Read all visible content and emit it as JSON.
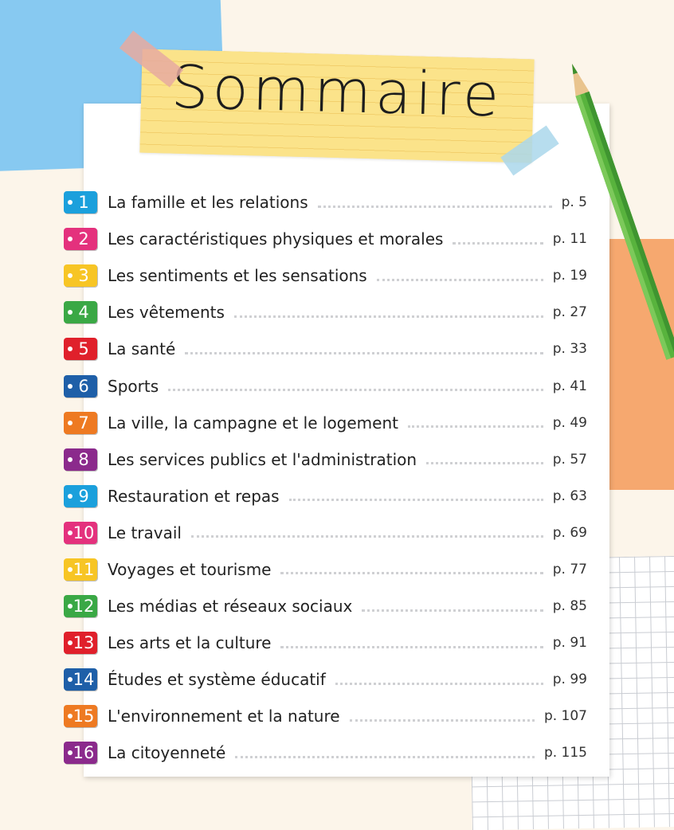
{
  "header": {
    "title": "Sommaire"
  },
  "entries": [
    {
      "number": "1",
      "label": "La famille et les relations",
      "page": "p. 5"
    },
    {
      "number": "2",
      "label": "Les caractéristiques physiques et morales",
      "page": "p. 11"
    },
    {
      "number": "3",
      "label": "Les sentiments et les sensations",
      "page": "p. 19"
    },
    {
      "number": "4",
      "label": "Les vêtements",
      "page": "p. 27"
    },
    {
      "number": "5",
      "label": "La santé",
      "page": "p. 33"
    },
    {
      "number": "6",
      "label": "Sports",
      "page": "p. 41"
    },
    {
      "number": "7",
      "label": "La ville, la campagne et le logement",
      "page": "p. 49"
    },
    {
      "number": "8",
      "label": "Les services publics et l'administration",
      "page": "p. 57"
    },
    {
      "number": "9",
      "label": "Restauration et repas",
      "page": "p. 63"
    },
    {
      "number": "10",
      "label": "Le travail",
      "page": "p. 69"
    },
    {
      "number": "11",
      "label": "Voyages et tourisme",
      "page": "p. 77"
    },
    {
      "number": "12",
      "label": "Les médias et réseaux sociaux",
      "page": "p. 85"
    },
    {
      "number": "13",
      "label": "Les arts et la culture",
      "page": "p. 91"
    },
    {
      "number": "14",
      "label": "Études et système éducatif",
      "page": "p. 99"
    },
    {
      "number": "15",
      "label": "L'environnement et la nature",
      "page": "p. 107"
    },
    {
      "number": "16",
      "label": "La citoyenneté",
      "page": "p. 115"
    }
  ]
}
